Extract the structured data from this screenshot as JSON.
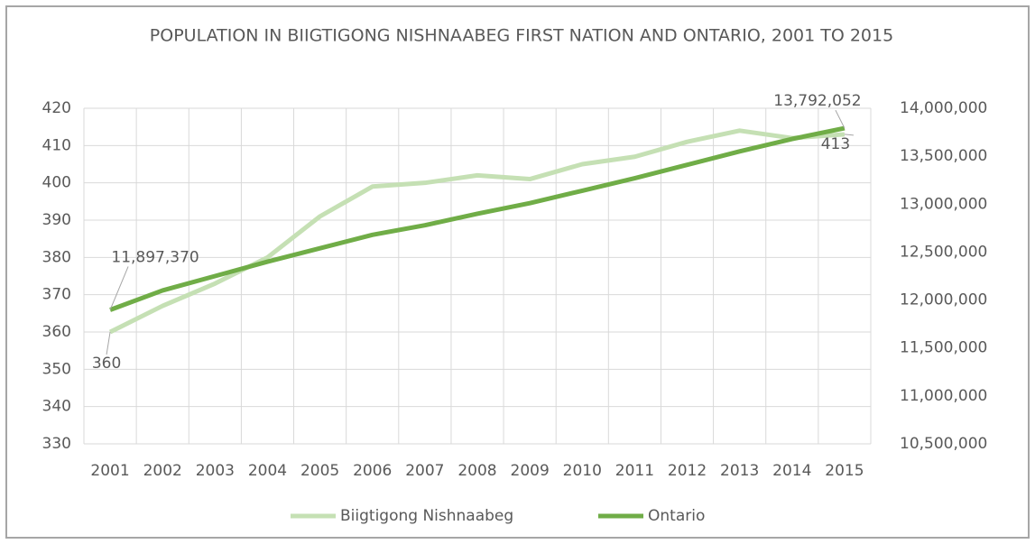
{
  "chart_data": {
    "type": "line",
    "title": "POPULATION IN BIIGTIGONG NISHNAABEG FIRST NATION AND ONTARIO, 2001 TO 2015",
    "categories": [
      "2001",
      "2002",
      "2003",
      "2004",
      "2005",
      "2006",
      "2007",
      "2008",
      "2009",
      "2010",
      "2011",
      "2012",
      "2013",
      "2014",
      "2015"
    ],
    "series": [
      {
        "name": "Biigtigong Nishnaabeg",
        "color": "#c5e0b4",
        "axis": "y",
        "values": [
          360,
          367,
          373,
          380,
          391,
          399,
          400,
          402,
          401,
          405,
          407,
          411,
          414,
          412,
          413
        ],
        "value_labels": [
          "360",
          null,
          null,
          null,
          null,
          null,
          null,
          null,
          null,
          null,
          null,
          null,
          null,
          null,
          "413"
        ]
      },
      {
        "name": "Ontario",
        "color": "#70ad47",
        "axis": "y2",
        "values": [
          11897370,
          12100000,
          12250000,
          12400000,
          12540000,
          12680000,
          12780000,
          12900000,
          13010000,
          13140000,
          13270000,
          13410000,
          13550000,
          13680000,
          13792052
        ],
        "value_labels": [
          "11,897,370",
          null,
          null,
          null,
          null,
          null,
          null,
          null,
          null,
          null,
          null,
          null,
          null,
          null,
          "13,792,052"
        ]
      }
    ],
    "ylim": [
      330,
      420
    ],
    "yticks": [
      330,
      340,
      350,
      360,
      370,
      380,
      390,
      400,
      410,
      420
    ],
    "y2lim": [
      10500000,
      14000000
    ],
    "y2ticks": [
      {
        "value": 10500000,
        "label": "10,500,000"
      },
      {
        "value": 11000000,
        "label": "11,000,000"
      },
      {
        "value": 11500000,
        "label": "11,500,000"
      },
      {
        "value": 12000000,
        "label": "12,000,000"
      },
      {
        "value": 12500000,
        "label": "12,500,000"
      },
      {
        "value": 13000000,
        "label": "13,000,000"
      },
      {
        "value": 13500000,
        "label": "13,500,000"
      },
      {
        "value": 14000000,
        "label": "14,000,000"
      }
    ],
    "grid": true,
    "legend": "bottom"
  }
}
